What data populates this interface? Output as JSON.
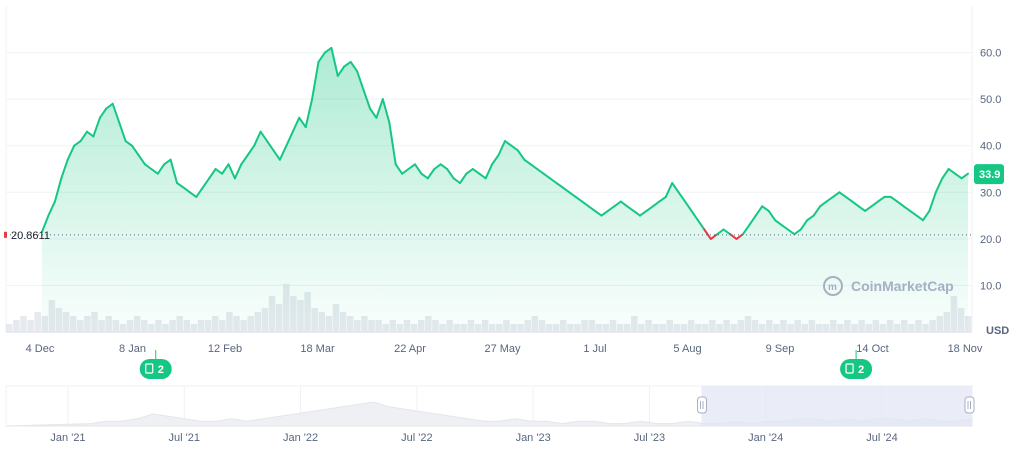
{
  "chart_data": {
    "type": "area",
    "unit": "USD",
    "y_ticks": [
      "60.0",
      "50.0",
      "40.0",
      "30.0",
      "20.0",
      "10.0"
    ],
    "ylim": [
      0,
      70
    ],
    "x_ticks": [
      "4 Dec",
      "8 Jan",
      "12 Feb",
      "18 Mar",
      "22 Apr",
      "27 May",
      "1 Jul",
      "5 Aug",
      "9 Sep",
      "14 Oct",
      "18 Nov"
    ],
    "baseline_label": "20.8611",
    "baseline_value": 20.8611,
    "current_value_label": "33.9",
    "current_value": 33.9,
    "series": [
      {
        "values": [
          21.5,
          25,
          28,
          33,
          37,
          40,
          41,
          43,
          42,
          46,
          48,
          49,
          45,
          41,
          40,
          38,
          36,
          35,
          34,
          36,
          37,
          32,
          31,
          30,
          29,
          31,
          33,
          35,
          34,
          36,
          33,
          36,
          38,
          40,
          43,
          41,
          39,
          37,
          40,
          43,
          46,
          44,
          50,
          58,
          60,
          61,
          55,
          57,
          58,
          56,
          52,
          48,
          46,
          50,
          45,
          36,
          34,
          35,
          36,
          34,
          33,
          35,
          36,
          35,
          33,
          32,
          34,
          35,
          34,
          33,
          36,
          38,
          41,
          40,
          39,
          37,
          36,
          35,
          34,
          33,
          32,
          31,
          30,
          29,
          28,
          27,
          26,
          25,
          26,
          27,
          28,
          27,
          26,
          25,
          26,
          27,
          28,
          29,
          32,
          30,
          28,
          26,
          24,
          22,
          20,
          21,
          22,
          21,
          20,
          21,
          23,
          25,
          27,
          26,
          24,
          23,
          22,
          21,
          22,
          24,
          25,
          27,
          28,
          29,
          30,
          29,
          28,
          27,
          26,
          27,
          28,
          29,
          29,
          28,
          27,
          26,
          25,
          24,
          26,
          30,
          33,
          35,
          34,
          33,
          34
        ]
      }
    ],
    "volume": [
      2,
      3,
      4,
      3,
      5,
      4,
      8,
      6,
      5,
      4,
      3,
      4,
      5,
      3,
      4,
      3,
      2,
      3,
      4,
      3,
      2,
      3,
      2,
      3,
      4,
      3,
      2,
      3,
      3,
      4,
      3,
      5,
      4,
      3,
      4,
      5,
      6,
      9,
      7,
      12,
      9,
      8,
      10,
      6,
      5,
      4,
      7,
      5,
      4,
      3,
      4,
      3,
      3,
      2,
      3,
      2,
      3,
      2,
      3,
      4,
      3,
      2,
      3,
      2,
      2,
      3,
      2,
      3,
      2,
      2,
      3,
      2,
      2,
      3,
      4,
      3,
      2,
      2,
      3,
      2,
      2,
      3,
      3,
      2,
      2,
      3,
      2,
      2,
      4,
      2,
      3,
      2,
      2,
      3,
      2,
      2,
      3,
      2,
      2,
      3,
      2,
      3,
      2,
      3,
      4,
      3,
      2,
      3,
      2,
      3,
      2,
      3,
      2,
      3,
      2,
      2,
      3,
      2,
      3,
      2,
      3,
      2,
      3,
      2,
      3,
      2,
      3,
      2,
      3,
      2,
      3,
      4,
      5,
      9,
      6,
      4
    ],
    "navigator": {
      "x_ticks": [
        "Jan '21",
        "Jul '21",
        "Jan '22",
        "Jul '22",
        "Jan '23",
        "Jul '23",
        "Jan '24",
        "Jul '24"
      ],
      "values": [
        1,
        2,
        2,
        3,
        5,
        4,
        3,
        2,
        2,
        3,
        2,
        3,
        4,
        5,
        6,
        7,
        8,
        9,
        10,
        8,
        7,
        6,
        5,
        4,
        3,
        2,
        2,
        3,
        2,
        2,
        1,
        2,
        2,
        1,
        1,
        2,
        1,
        1,
        2,
        1,
        1,
        2,
        1,
        2,
        2,
        3,
        3,
        2,
        3,
        2,
        3,
        3,
        2,
        3,
        2,
        2,
        3
      ],
      "selection_start": 0.72,
      "selection_end": 1.0
    },
    "events": [
      {
        "label": "2",
        "at_x_fraction": 0.155
      },
      {
        "label": "2",
        "at_x_fraction": 0.88
      }
    ],
    "watermark": "CoinMarketCap",
    "colors": {
      "line_up": "#16c784",
      "line_down": "#ea3943",
      "area_top": "#16c784",
      "volume": "#eff2f5",
      "grid": "#eff2f5",
      "badge": "#16c784",
      "navigator_fill": "#e1e6f5"
    }
  }
}
